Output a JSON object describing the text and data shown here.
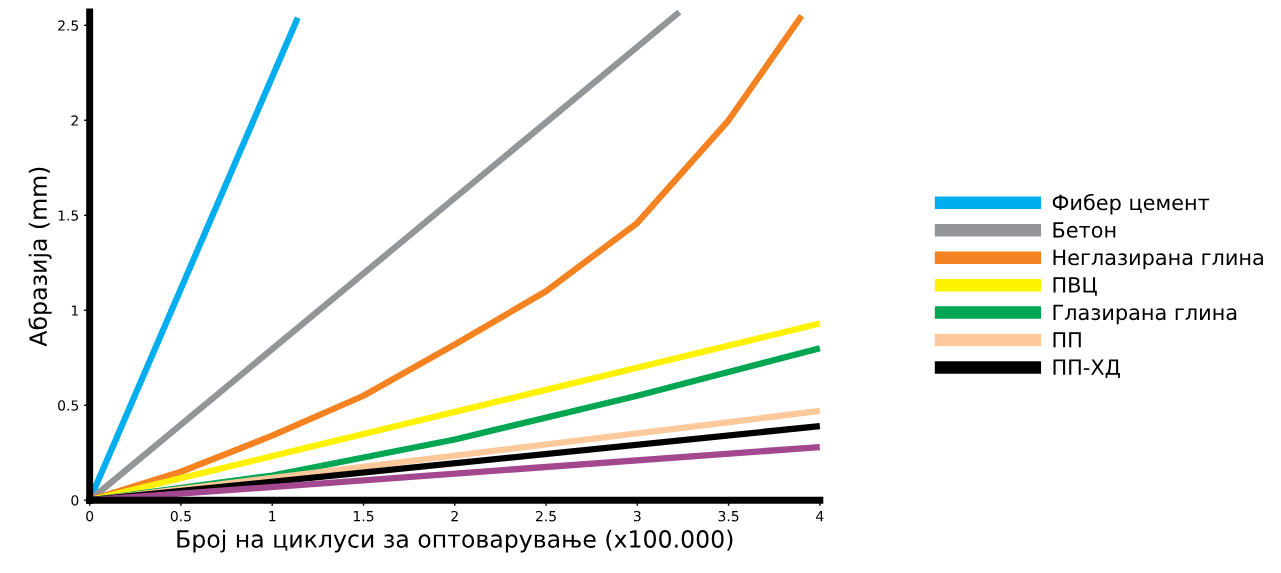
{
  "chart_data": {
    "type": "line",
    "xlabel": "Број на циклуси за оптоварување (x100.000)",
    "ylabel": "Абразија (mm)",
    "xlim": [
      0,
      4
    ],
    "xticks": [
      0,
      0.5,
      1,
      1.5,
      2,
      2.5,
      3,
      3.5,
      4
    ],
    "ylim": [
      0,
      2.57
    ],
    "yticks": [
      0,
      0.5,
      1,
      1.5,
      2,
      2.5
    ],
    "grid": false,
    "legend": "right",
    "line_style": "solid",
    "series": [
      {
        "name": "Фибер цемент",
        "color": "#00aeef",
        "x": [
          0,
          1.14
        ],
        "values": [
          0,
          2.54
        ]
      },
      {
        "name": "Бетон",
        "color": "#939598",
        "x": [
          0,
          3.23
        ],
        "values": [
          0,
          2.57
        ]
      },
      {
        "name": "Неглазирана глина",
        "color": "#f58220",
        "x": [
          0,
          0.5,
          1,
          1.5,
          2,
          2.5,
          3,
          3.5,
          3.9
        ],
        "values": [
          0,
          0.15,
          0.34,
          0.55,
          0.82,
          1.1,
          1.46,
          2.0,
          2.55
        ]
      },
      {
        "name": "ПВЦ",
        "color": "#fff200",
        "x": [
          0,
          4
        ],
        "values": [
          0,
          0.93
        ]
      },
      {
        "name": "Глазирана глина",
        "color": "#00a651",
        "x": [
          0,
          1,
          2,
          3,
          4
        ],
        "values": [
          0,
          0.13,
          0.32,
          0.55,
          0.8
        ]
      },
      {
        "name": "ПП",
        "color": "#fdc99b",
        "x": [
          0,
          4
        ],
        "values": [
          0,
          0.47
        ]
      },
      {
        "name": "ПП-ХД",
        "color": "#000000",
        "x": [
          0,
          4
        ],
        "values": [
          0,
          0.39
        ]
      },
      {
        "color": "#a3488f",
        "x": [
          0,
          4
        ],
        "values": [
          0,
          0.28
        ]
      }
    ]
  }
}
